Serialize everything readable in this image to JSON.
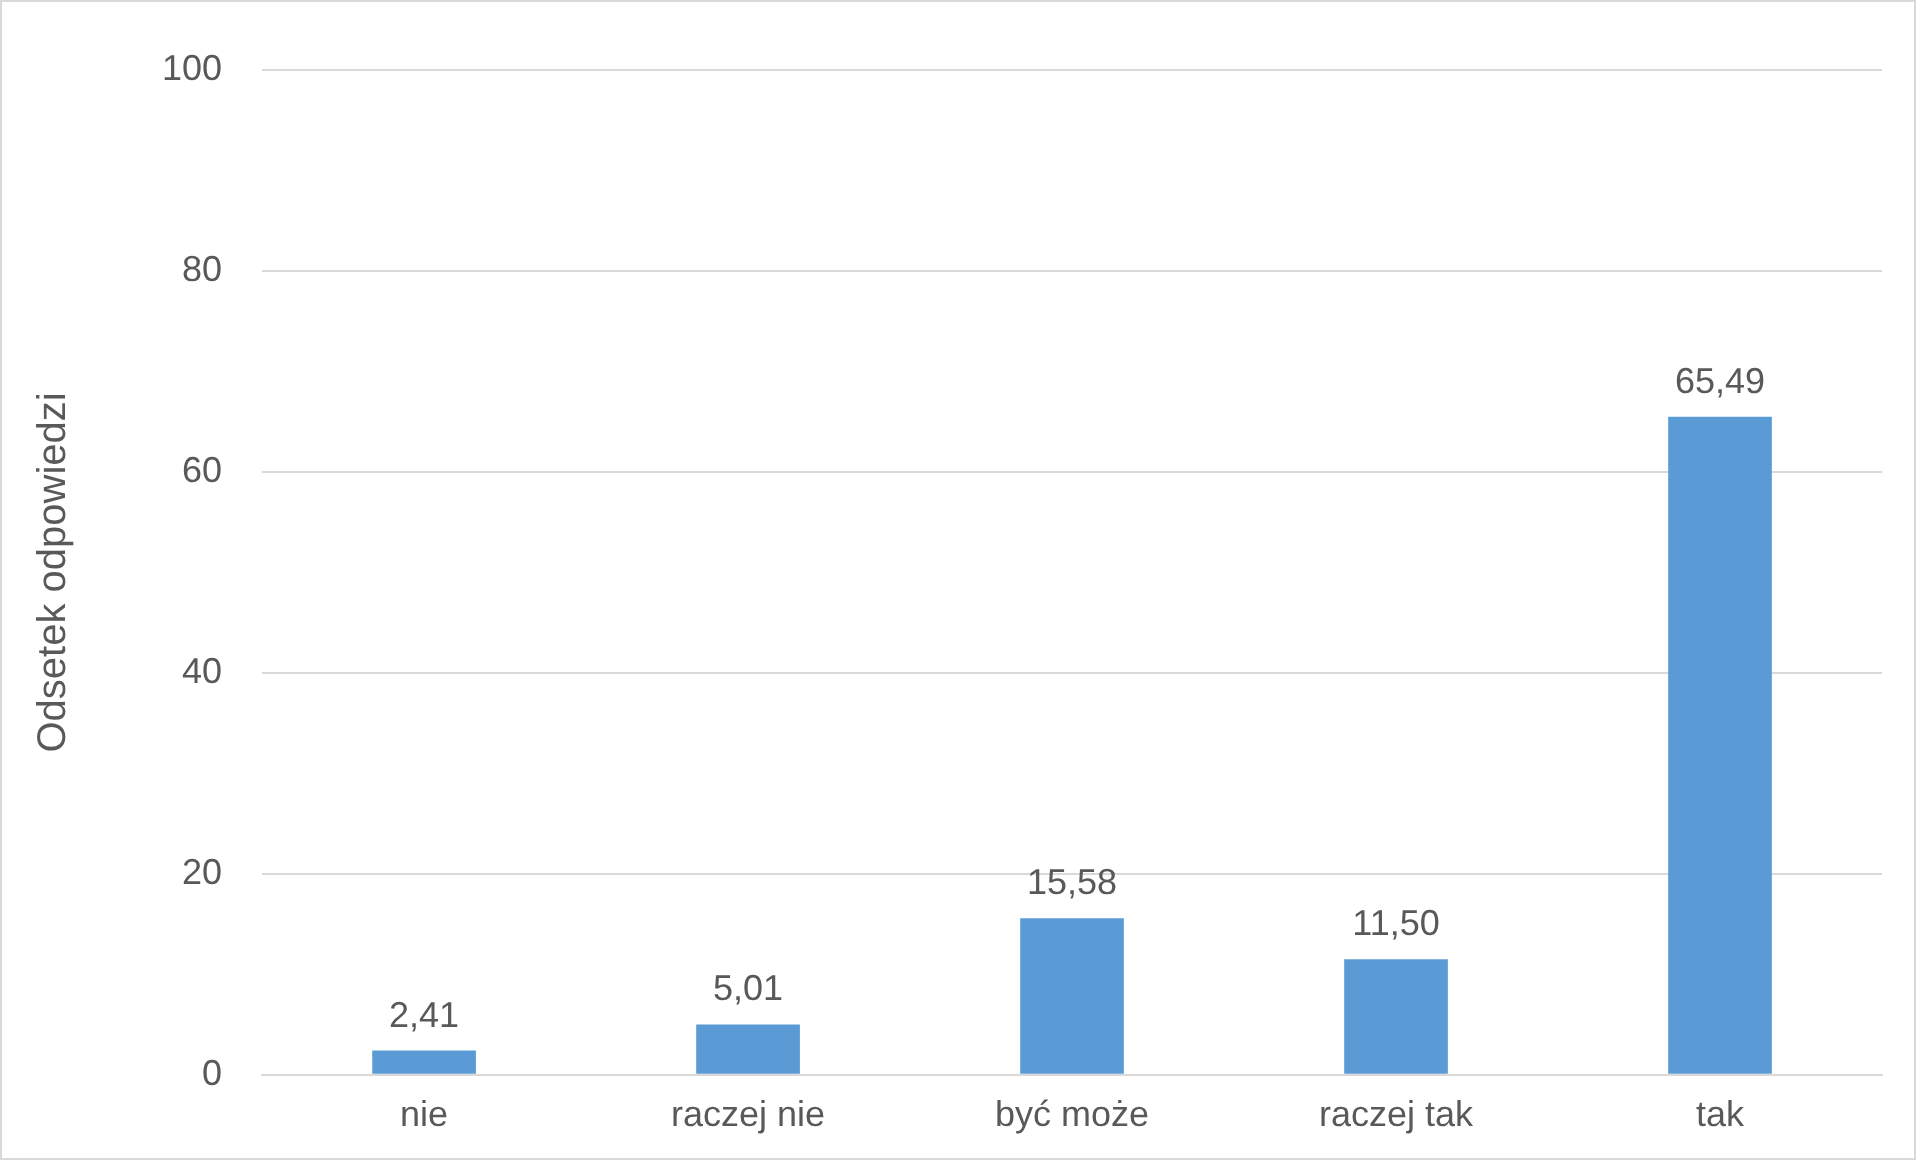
{
  "chart_data": {
    "type": "bar",
    "ylabel": "Odsetek odpowiedzi",
    "categories": [
      "nie",
      "raczej nie",
      "być może",
      "raczej tak",
      "tak"
    ],
    "values": [
      2.41,
      5.01,
      15.58,
      11.5,
      65.49
    ],
    "value_labels": [
      "2,41",
      "5,01",
      "15,58",
      "11,50",
      "65,49"
    ],
    "color": "#5b9bd5",
    "ylim": [
      0,
      100
    ],
    "yticks": [
      0,
      20,
      40,
      60,
      80,
      100
    ],
    "grid": "y",
    "legend": false
  }
}
